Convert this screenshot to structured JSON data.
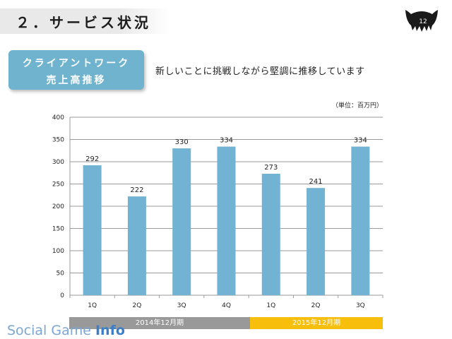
{
  "header": {
    "title": "２．サービス状況",
    "page_number": "12"
  },
  "category": {
    "line1": "クライアントワーク",
    "line2": "売上高推移"
  },
  "headline": "新しいことに挑戦しながら堅調に推移しています",
  "unit_label": "（単位：百万円）",
  "periods": {
    "fy2014": "2014年12月期",
    "fy2015": "2015年12月期"
  },
  "watermark": {
    "part1": "Social Game ",
    "part2": "Info"
  },
  "colors": {
    "bar": "#72b2d3",
    "fy2014_band": "#999999",
    "fy2015_band": "#f7be0c"
  },
  "chart_data": {
    "type": "bar",
    "categories": [
      "1Q",
      "2Q",
      "3Q",
      "4Q",
      "1Q",
      "2Q",
      "3Q"
    ],
    "values": [
      292,
      222,
      330,
      334,
      273,
      241,
      334
    ],
    "ylim": [
      0,
      400
    ],
    "yticks": [
      0,
      50,
      100,
      150,
      200,
      250,
      300,
      350,
      400
    ],
    "grid": true,
    "data_labels": true
  }
}
